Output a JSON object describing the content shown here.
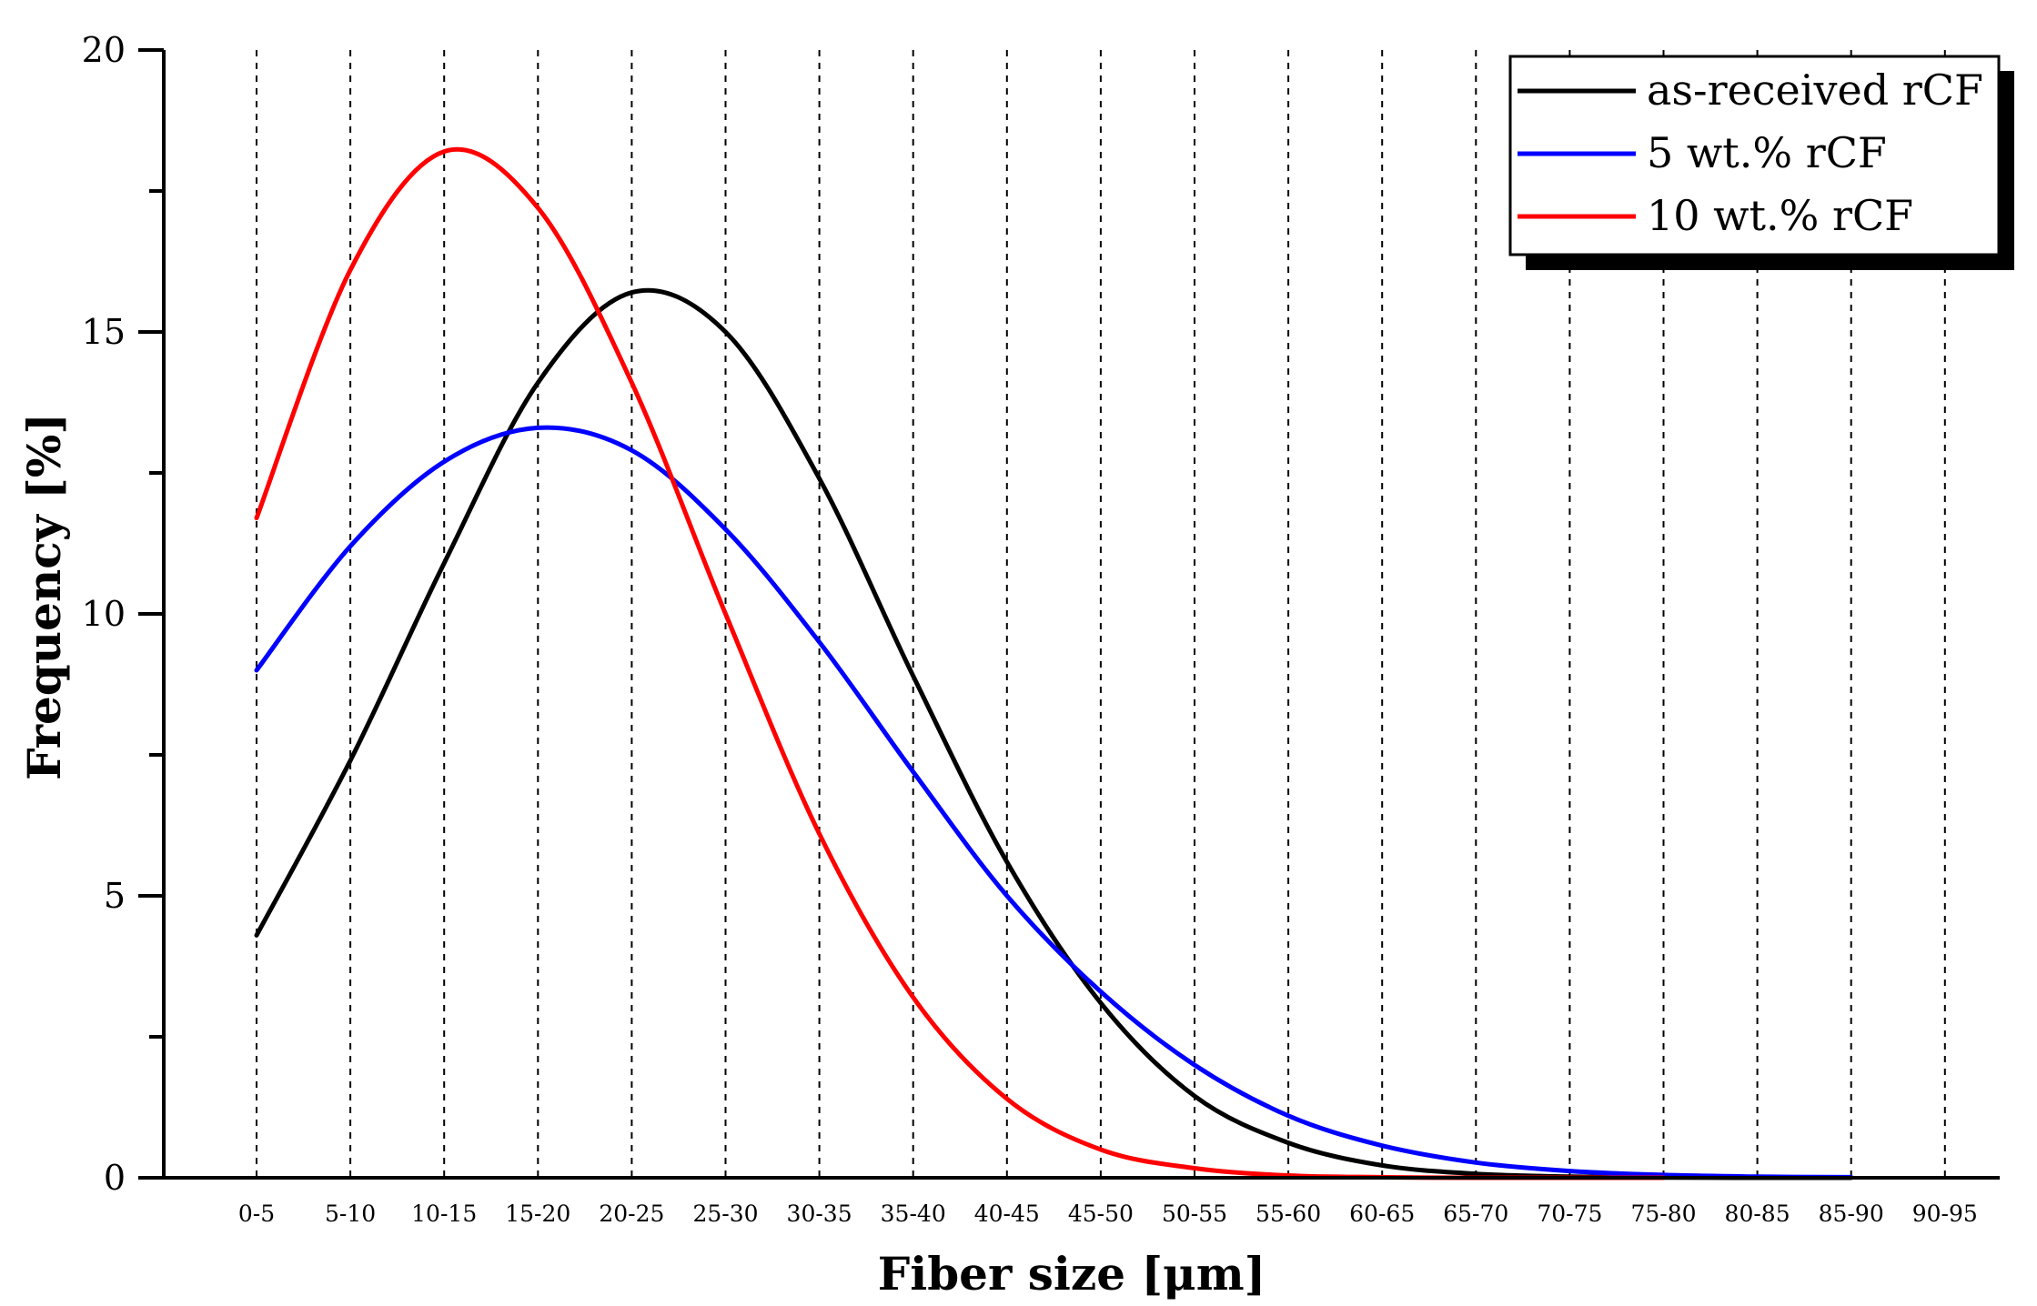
{
  "chart_data": {
    "type": "line",
    "title": "",
    "xlabel": "Fiber size [μm]",
    "ylabel": "Frequency [%]",
    "ylim": [
      0,
      20
    ],
    "yticks": [
      "0",
      "5",
      "10",
      "15",
      "20"
    ],
    "categories": [
      "0-5",
      "5-10",
      "10-15",
      "15-20",
      "20-25",
      "25-30",
      "30-35",
      "35-40",
      "40-45",
      "45-50",
      "50-55",
      "55-60",
      "60-65",
      "65-70",
      "70-75",
      "75-80",
      "80-85",
      "85-90",
      "90-95"
    ],
    "grid": "vertical dashed lines at each category",
    "legend_position": "top-right",
    "series": [
      {
        "name": "as-received rCF",
        "color": "#000000",
        "values": [
          4.3,
          7.4,
          10.9,
          14.1,
          15.7,
          15.0,
          12.4,
          8.9,
          5.6,
          3.1,
          1.45,
          0.62,
          0.22,
          0.07,
          0.02,
          0.005,
          0.0,
          0.0,
          null
        ]
      },
      {
        "name": "5 wt.% rCF",
        "color": "#0000ff",
        "values": [
          9.0,
          11.2,
          12.7,
          13.3,
          12.9,
          11.5,
          9.5,
          7.2,
          5.0,
          3.3,
          2.0,
          1.1,
          0.57,
          0.27,
          0.12,
          0.05,
          0.02,
          0.01,
          null
        ]
      },
      {
        "name": "10 wt.% rCF",
        "color": "#ff0000",
        "values": [
          11.7,
          16.1,
          18.2,
          17.2,
          14.1,
          10.0,
          6.1,
          3.2,
          1.4,
          0.5,
          0.17,
          0.04,
          0.01,
          0.0,
          0.0,
          0.0,
          null,
          null,
          null
        ]
      }
    ]
  }
}
